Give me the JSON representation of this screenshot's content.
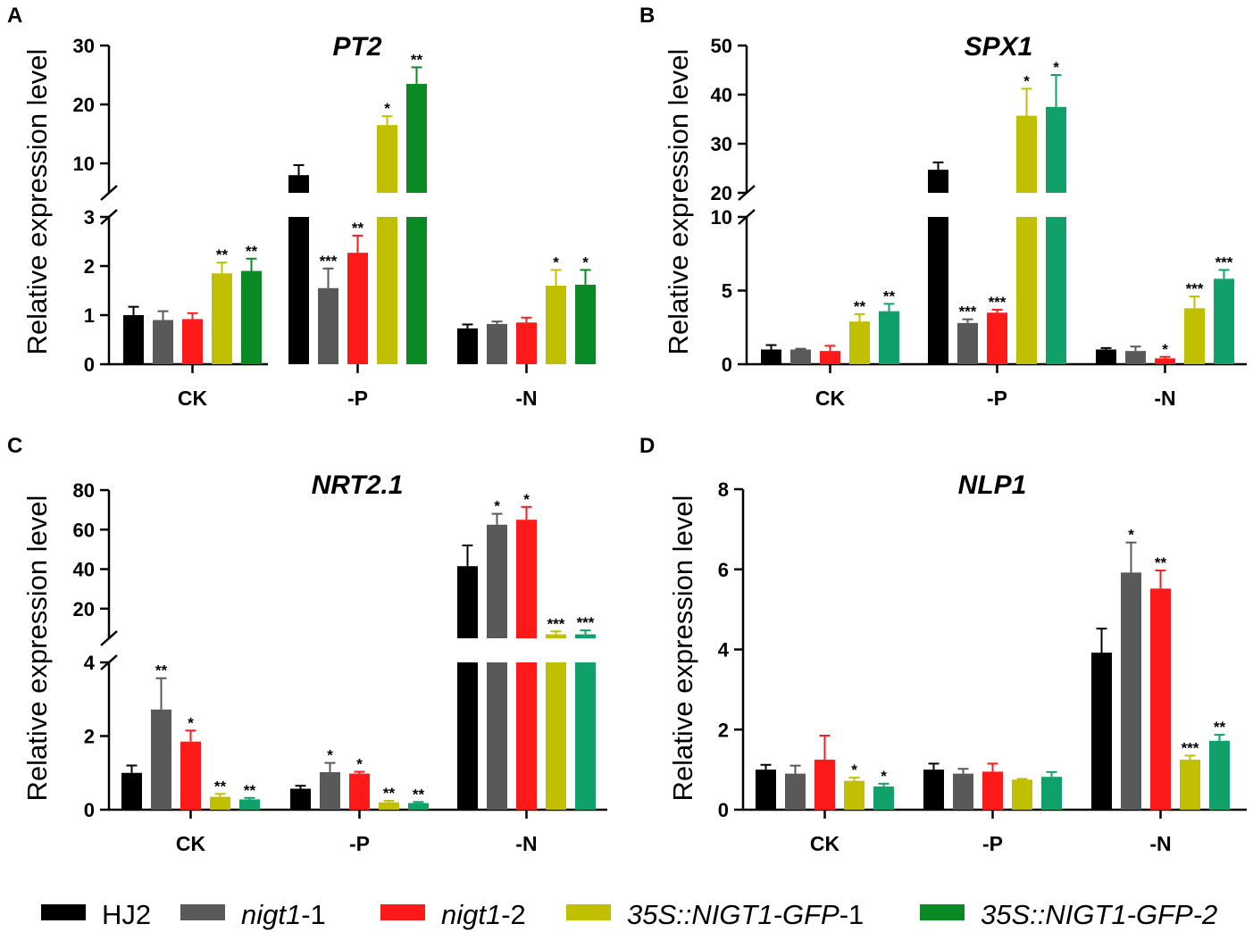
{
  "legend": [
    {
      "name": "HJ2",
      "parts": [
        {
          "t": "HJ2",
          "i": false
        }
      ],
      "color": "#000000"
    },
    {
      "name": "nigt1-1",
      "parts": [
        {
          "t": "nigt1",
          "i": true
        },
        {
          "t": "-1",
          "i": false
        }
      ],
      "color": "#595959"
    },
    {
      "name": "nigt1-2",
      "parts": [
        {
          "t": "nigt1",
          "i": true
        },
        {
          "t": "-2",
          "i": false
        }
      ],
      "color": "#ff1a1a"
    },
    {
      "name": "35S::NIGT1-GFP-1",
      "parts": [
        {
          "t": "35S::NIGT1-GFP",
          "i": true
        },
        {
          "t": "-1",
          "i": false
        }
      ],
      "color": "#c0c000"
    },
    {
      "name": "35S::NIGT1-GFP-2",
      "parts": [
        {
          "t": "35S::NIGT1-GFP-2",
          "i": true
        }
      ],
      "color": "#0a8a24"
    }
  ],
  "chart_data": [
    {
      "panel": "A",
      "type": "bar",
      "title": "PT2",
      "ylabel": "Relative expression level",
      "categories": [
        "CK",
        "-P",
        "-N"
      ],
      "axis_break": {
        "lower": [
          0,
          3
        ],
        "upper": [
          5,
          30
        ],
        "lower_ticks": [
          "0",
          "1",
          "2",
          "3"
        ],
        "upper_ticks": [
          "10",
          "20",
          "30"
        ]
      },
      "colors": [
        "#000000",
        "#595959",
        "#ff1a1a",
        "#c0c000",
        "#0a8a24"
      ],
      "series": [
        {
          "name": "HJ2",
          "values": [
            1.0,
            8.0,
            0.73
          ],
          "errors": [
            0.17,
            1.7,
            0.08
          ],
          "stars": [
            "",
            "",
            ""
          ]
        },
        {
          "name": "nigt1-1",
          "values": [
            0.9,
            1.55,
            0.82
          ],
          "errors": [
            0.18,
            0.4,
            0.05
          ],
          "stars": [
            "",
            "***",
            ""
          ]
        },
        {
          "name": "nigt1-2",
          "values": [
            0.92,
            2.27,
            0.85
          ],
          "errors": [
            0.12,
            0.35,
            0.1
          ],
          "stars": [
            "",
            "**",
            ""
          ]
        },
        {
          "name": "35S::NIGT1-GFP-1",
          "values": [
            1.85,
            16.5,
            1.6
          ],
          "errors": [
            0.22,
            1.5,
            0.32
          ],
          "stars": [
            "**",
            "*",
            "*"
          ]
        },
        {
          "name": "35S::NIGT1-GFP-2",
          "values": [
            1.9,
            23.5,
            1.62
          ],
          "errors": [
            0.25,
            2.8,
            0.3
          ],
          "stars": [
            "**",
            "**",
            "*"
          ]
        }
      ]
    },
    {
      "panel": "B",
      "type": "bar",
      "title": "SPX1",
      "ylabel": "Relative expression level",
      "categories": [
        "CK",
        "-P",
        "-N"
      ],
      "axis_break": {
        "lower": [
          0,
          10
        ],
        "upper": [
          20,
          50
        ],
        "lower_ticks": [
          "0",
          "5",
          "10"
        ],
        "upper_ticks": [
          "20",
          "30",
          "40",
          "50"
        ]
      },
      "colors": [
        "#000000",
        "#595959",
        "#ff1a1a",
        "#c0c000",
        "#10a06a"
      ],
      "series": [
        {
          "name": "HJ2",
          "values": [
            1.0,
            24.7,
            1.0
          ],
          "errors": [
            0.3,
            1.5,
            0.1
          ],
          "stars": [
            "",
            "",
            ""
          ]
        },
        {
          "name": "nigt1-1",
          "values": [
            1.0,
            2.8,
            0.9
          ],
          "errors": [
            0.05,
            0.25,
            0.3
          ],
          "stars": [
            "",
            "***",
            ""
          ]
        },
        {
          "name": "nigt1-2",
          "values": [
            0.9,
            3.5,
            0.4
          ],
          "errors": [
            0.35,
            0.2,
            0.1
          ],
          "stars": [
            "",
            "***",
            "*"
          ]
        },
        {
          "name": "35S::NIGT1-GFP-1",
          "values": [
            2.9,
            35.7,
            3.8
          ],
          "errors": [
            0.5,
            5.5,
            0.8
          ],
          "stars": [
            "**",
            "*",
            "***"
          ]
        },
        {
          "name": "35S::NIGT1-GFP-2",
          "values": [
            3.6,
            37.5,
            5.8
          ],
          "errors": [
            0.5,
            6.5,
            0.6
          ],
          "stars": [
            "**",
            "*",
            "***"
          ]
        }
      ]
    },
    {
      "panel": "C",
      "type": "bar",
      "title": "NRT2.1",
      "ylabel": "Relative expression level",
      "categories": [
        "CK",
        "-P",
        "-N"
      ],
      "axis_break": {
        "lower": [
          0,
          4
        ],
        "upper": [
          5,
          80
        ],
        "lower_ticks": [
          "0",
          "2",
          "4"
        ],
        "upper_ticks": [
          "20",
          "40",
          "60",
          "80"
        ]
      },
      "colors": [
        "#000000",
        "#595959",
        "#ff1a1a",
        "#c0c000",
        "#10a06a"
      ],
      "series": [
        {
          "name": "HJ2",
          "values": [
            1.0,
            0.57,
            41.5
          ],
          "errors": [
            0.2,
            0.08,
            10.5
          ],
          "stars": [
            "",
            "",
            ""
          ]
        },
        {
          "name": "nigt1-1",
          "values": [
            2.72,
            1.02,
            62.5
          ],
          "errors": [
            0.85,
            0.25,
            5.5
          ],
          "stars": [
            "**",
            "*",
            "*"
          ]
        },
        {
          "name": "nigt1-2",
          "values": [
            1.85,
            0.98,
            65.0
          ],
          "errors": [
            0.3,
            0.05,
            6.5
          ],
          "stars": [
            "*",
            "*",
            "*"
          ]
        },
        {
          "name": "35S::NIGT1-GFP-1",
          "values": [
            0.35,
            0.2,
            7.0
          ],
          "errors": [
            0.08,
            0.04,
            1.5
          ],
          "stars": [
            "**",
            "**",
            "***"
          ]
        },
        {
          "name": "35S::NIGT1-GFP-2",
          "values": [
            0.28,
            0.18,
            7.0
          ],
          "errors": [
            0.04,
            0.03,
            2.0
          ],
          "stars": [
            "**",
            "**",
            "***"
          ]
        }
      ]
    },
    {
      "panel": "D",
      "type": "bar",
      "title": "NLP1",
      "ylabel": "Relative expression level",
      "categories": [
        "CK",
        "-P",
        "-N"
      ],
      "ylim": [
        0,
        8
      ],
      "yticks": [
        "0",
        "2",
        "4",
        "6",
        "8"
      ],
      "colors": [
        "#000000",
        "#595959",
        "#ff1a1a",
        "#c0c000",
        "#10a06a"
      ],
      "series": [
        {
          "name": "HJ2",
          "values": [
            1.0,
            1.0,
            3.92
          ],
          "errors": [
            0.12,
            0.15,
            0.6
          ],
          "stars": [
            "",
            "",
            ""
          ]
        },
        {
          "name": "nigt1-1",
          "values": [
            0.9,
            0.9,
            5.92
          ],
          "errors": [
            0.2,
            0.12,
            0.75
          ],
          "stars": [
            "",
            "",
            "*"
          ]
        },
        {
          "name": "nigt1-2",
          "values": [
            1.25,
            0.95,
            5.52
          ],
          "errors": [
            0.6,
            0.2,
            0.45
          ],
          "stars": [
            "",
            "",
            "**"
          ]
        },
        {
          "name": "35S::NIGT1-GFP-1",
          "values": [
            0.72,
            0.75,
            1.25
          ],
          "errors": [
            0.08,
            0.02,
            0.1
          ],
          "stars": [
            "*",
            "",
            "***"
          ]
        },
        {
          "name": "35S::NIGT1-GFP-2",
          "values": [
            0.58,
            0.82,
            1.72
          ],
          "errors": [
            0.07,
            0.12,
            0.15
          ],
          "stars": [
            "*",
            "",
            "**"
          ]
        }
      ]
    }
  ]
}
